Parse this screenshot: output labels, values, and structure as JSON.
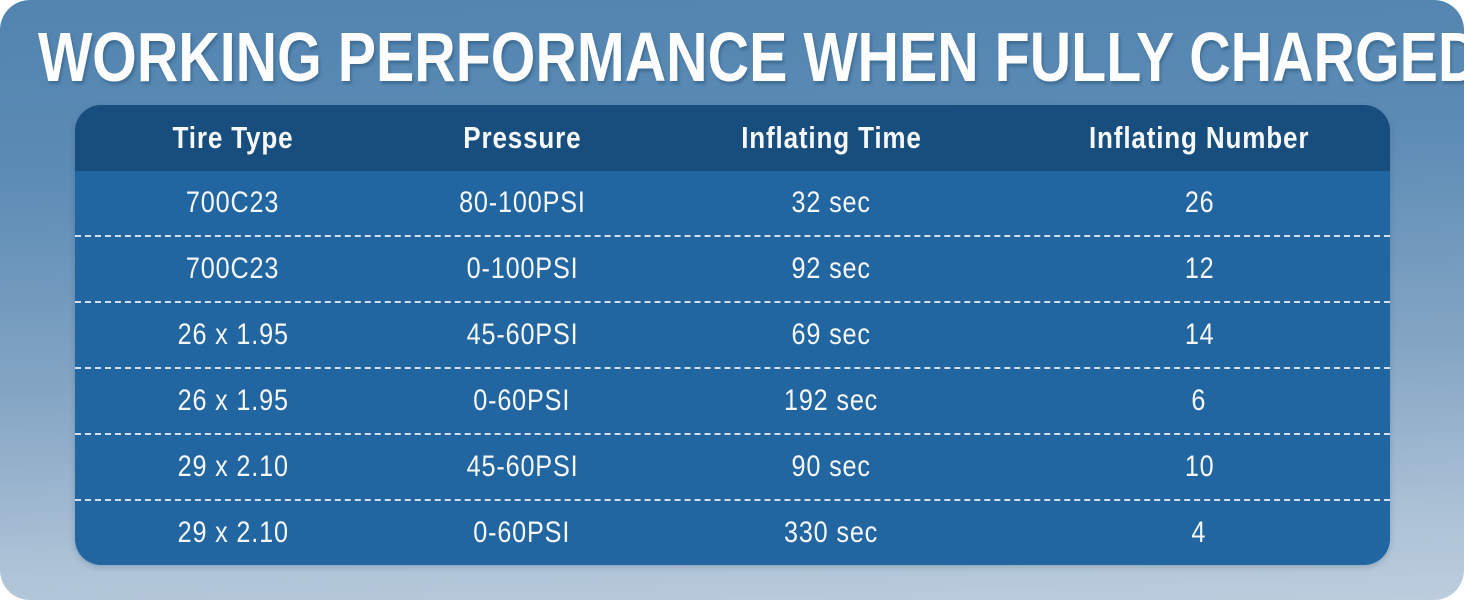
{
  "title": "WORKING PERFORMANCE WHEN FULLY CHARGED",
  "table": {
    "headers": [
      "Tire Type",
      "Pressure",
      "Inflating Time",
      "Inflating Number"
    ],
    "rows": [
      [
        "700C23",
        "80-100PSI",
        "32 sec",
        "26"
      ],
      [
        "700C23",
        "0-100PSI",
        "92 sec",
        "12"
      ],
      [
        "26 x 1.95",
        "45-60PSI",
        "69 sec",
        "14"
      ],
      [
        "26 x 1.95",
        "0-60PSI",
        "192 sec",
        "6"
      ],
      [
        "29 x 2.10",
        "45-60PSI",
        "90 sec",
        "10"
      ],
      [
        "29 x 2.10",
        "0-60PSI",
        "330 sec",
        "4"
      ]
    ]
  },
  "colors": {
    "header_bg": "#174e7d",
    "row_bg": "#2165a1",
    "text": "#ffffff",
    "separator": "#d4dfe9",
    "bg_gradient_top": "#5184b0",
    "bg_gradient_bottom": "#bccddd"
  },
  "chart_data": {
    "type": "table",
    "title": "WORKING PERFORMANCE WHEN FULLY CHARGED",
    "columns": [
      "Tire Type",
      "Pressure",
      "Inflating Time",
      "Inflating Number"
    ],
    "rows": [
      {
        "tire_type": "700C23",
        "pressure": "80-100PSI",
        "inflating_time_sec": 32,
        "inflating_number": 26
      },
      {
        "tire_type": "700C23",
        "pressure": "0-100PSI",
        "inflating_time_sec": 92,
        "inflating_number": 12
      },
      {
        "tire_type": "26 x 1.95",
        "pressure": "45-60PSI",
        "inflating_time_sec": 69,
        "inflating_number": 14
      },
      {
        "tire_type": "26 x 1.95",
        "pressure": "0-60PSI",
        "inflating_time_sec": 192,
        "inflating_number": 6
      },
      {
        "tire_type": "29 x 2.10",
        "pressure": "45-60PSI",
        "inflating_time_sec": 90,
        "inflating_number": 10
      },
      {
        "tire_type": "29 x 2.10",
        "pressure": "0-60PSI",
        "inflating_time_sec": 330,
        "inflating_number": 4
      }
    ]
  }
}
